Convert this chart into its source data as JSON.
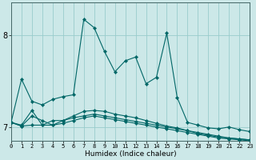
{
  "xlabel": "Humidex (Indice chaleur)",
  "ylabel": "",
  "background_color": "#cce8e8",
  "grid_color": "#99cccc",
  "line_color": "#006666",
  "marker_color": "#006666",
  "xlim": [
    0,
    23
  ],
  "ylim": [
    6.85,
    8.35
  ],
  "yticks": [
    7,
    8
  ],
  "xticks": [
    0,
    1,
    2,
    3,
    4,
    5,
    6,
    7,
    8,
    9,
    10,
    11,
    12,
    13,
    14,
    15,
    16,
    17,
    18,
    19,
    20,
    21,
    22,
    23
  ],
  "series": [
    [
      7.05,
      7.52,
      7.28,
      7.24,
      7.3,
      7.33,
      7.35,
      8.17,
      8.08,
      7.82,
      7.6,
      7.72,
      7.76,
      7.47,
      7.54,
      8.02,
      7.32,
      7.05,
      7.02,
      6.99,
      6.98,
      7.0,
      6.97,
      6.95
    ],
    [
      7.05,
      7.02,
      7.18,
      7.02,
      7.07,
      7.07,
      7.12,
      7.17,
      7.18,
      7.17,
      7.14,
      7.12,
      7.1,
      7.07,
      7.04,
      7.01,
      6.99,
      6.96,
      6.93,
      6.91,
      6.89,
      6.88,
      6.87,
      6.86
    ],
    [
      7.05,
      7.01,
      7.12,
      7.07,
      7.02,
      7.07,
      7.1,
      7.12,
      7.14,
      7.12,
      7.1,
      7.08,
      7.06,
      7.04,
      7.02,
      7.0,
      6.98,
      6.96,
      6.94,
      6.92,
      6.9,
      6.88,
      6.87,
      6.86
    ],
    [
      7.05,
      7.01,
      7.02,
      7.02,
      7.02,
      7.04,
      7.07,
      7.1,
      7.12,
      7.1,
      7.08,
      7.06,
      7.04,
      7.02,
      7.0,
      6.98,
      6.96,
      6.94,
      6.92,
      6.9,
      6.88,
      6.87,
      6.86,
      6.85
    ]
  ]
}
